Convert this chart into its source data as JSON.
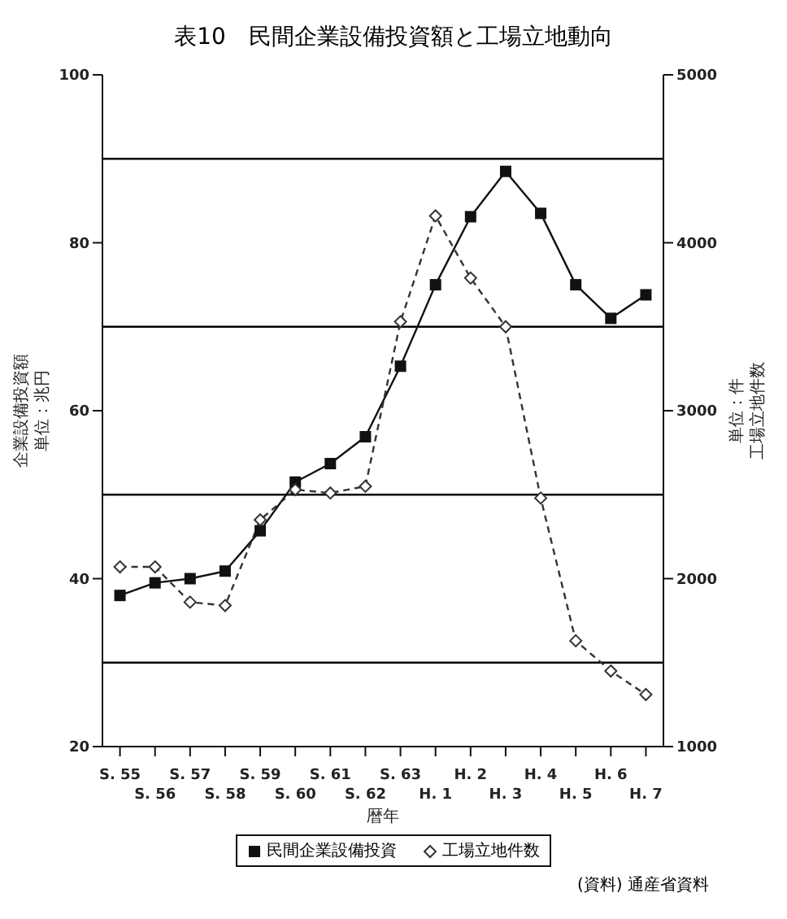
{
  "chart_data": {
    "type": "line",
    "title": "表10　民間企業設備投資額と工場立地動向",
    "xlabel": "暦年",
    "ylabel": "企業設備投資額",
    "y2label": "工場立地件数",
    "categories": [
      "S. 55",
      "S. 56",
      "S. 57",
      "S. 58",
      "S. 59",
      "S. 60",
      "S. 61",
      "S. 62",
      "S. 63",
      "H. 1",
      "H. 2",
      "H. 3",
      "H. 4",
      "H. 5",
      "H. 6",
      "H. 7"
    ],
    "series": [
      {
        "name": "民間企業設備投資",
        "color": "#111111",
        "marker": "square",
        "line_style": "solid",
        "values": [
          38.0,
          39.5,
          40.0,
          40.9,
          45.7,
          51.5,
          53.7,
          56.9,
          65.3,
          75.0,
          83.1,
          88.5,
          83.5,
          75.0,
          71.0,
          73.8
        ]
      },
      {
        "name": "工場立地件数",
        "color": "#333333",
        "marker": "diamond",
        "line_style": "dashed",
        "axis": "y2",
        "values": [
          2070,
          2070,
          1860,
          1840,
          2350,
          2530,
          2510,
          2550,
          3530,
          4160,
          3790,
          3500,
          2480,
          1630,
          1450,
          1310
        ]
      }
    ],
    "ylim": [
      20,
      100
    ],
    "yticks": [
      20,
      40,
      60,
      80,
      100
    ],
    "y2lim": [
      1000,
      5000
    ],
    "y2ticks": [
      1000,
      2000,
      3000,
      4000,
      5000
    ],
    "ref_lines": [
      {
        "axis": "y",
        "value": 30,
        "color": "#000000"
      },
      {
        "axis": "y",
        "value": 50,
        "color": "#000000"
      },
      {
        "axis": "y",
        "value": 70,
        "color": "#000000"
      },
      {
        "axis": "y",
        "value": 90,
        "color": "#000000"
      }
    ],
    "legend": "bottom",
    "annotations": [
      "単位：兆円",
      "単位：件",
      "(資料) 通産省資料"
    ]
  }
}
